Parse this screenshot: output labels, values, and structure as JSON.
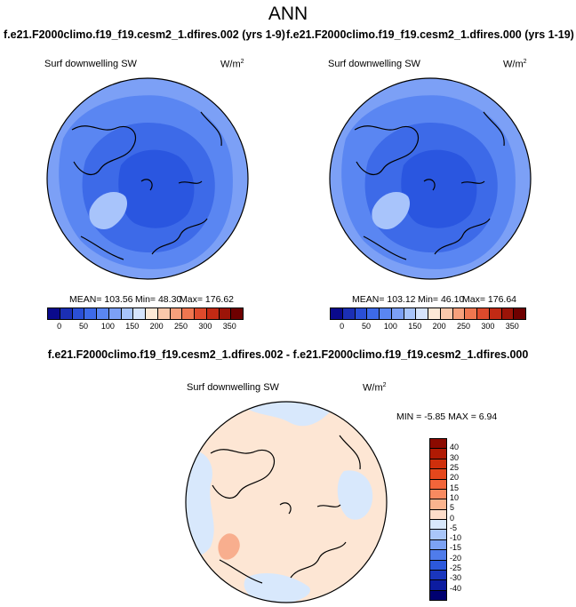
{
  "title": "ANN",
  "case_a": "f.e21.F2000climo.f19_f19.cesm2_1.dfires.002 (yrs 1-9)",
  "case_b": "f.e21.F2000climo.f19_f19.cesm2_1.dfires.000 (yrs 1-19)",
  "diff_title": "f.e21.F2000climo.f19_f19.cesm2_1.dfires.002 - f.e21.F2000climo.f19_f19.cesm2_1.dfires.000",
  "variable": "Surf downwelling SW",
  "units_base": "W/m",
  "units_exp": "2",
  "panels": {
    "left": {
      "mean": "MEAN= 103.56",
      "min": "Min=  48.30",
      "max": "Max= 176.62"
    },
    "right": {
      "mean": "MEAN= 103.12",
      "min": "Min=  46.10",
      "max": "Max= 176.64"
    },
    "diff": {
      "stats": "MIN =  -5.85 MAX =   6.94"
    }
  },
  "abs_colorbar": {
    "ticks": [
      "0",
      "50",
      "100",
      "150",
      "200",
      "250",
      "300",
      "350"
    ],
    "colors": [
      "#0a0a8c",
      "#1b2fb4",
      "#2a4fd6",
      "#3d6ae8",
      "#5a86f2",
      "#7ca0f6",
      "#a8c4fb",
      "#d6e4fd",
      "#fde8d6",
      "#fbc8ac",
      "#f6a07c",
      "#ef7650",
      "#de4a2c",
      "#c22a14",
      "#9c1408",
      "#6e0000"
    ]
  },
  "diff_colorbar": {
    "labels": [
      "40",
      "30",
      "25",
      "20",
      "15",
      "10",
      "5",
      "0",
      "-5",
      "-10",
      "-15",
      "-20",
      "-25",
      "-30",
      "-40"
    ],
    "colors": [
      "#8c0a00",
      "#b01a04",
      "#cf2f0c",
      "#e5471c",
      "#f2653a",
      "#f88a60",
      "#fbb48e",
      "#fdddca",
      "#d8e8fc",
      "#a9c6f9",
      "#7ca2f4",
      "#4f7ceb",
      "#2c58dc",
      "#1a36bd",
      "#0c1ca0",
      "#000070"
    ]
  },
  "map_colors": {
    "ocean_low": "#2a56e0",
    "mid": "#3d6ae8",
    "high": "#5a86f2",
    "outer": "#7ca0f6",
    "ice": "#a8c4fb",
    "diff_pos": "#fde6d4",
    "diff_neg": "#d8e8fc",
    "diff_hot": "#f6a07c"
  }
}
